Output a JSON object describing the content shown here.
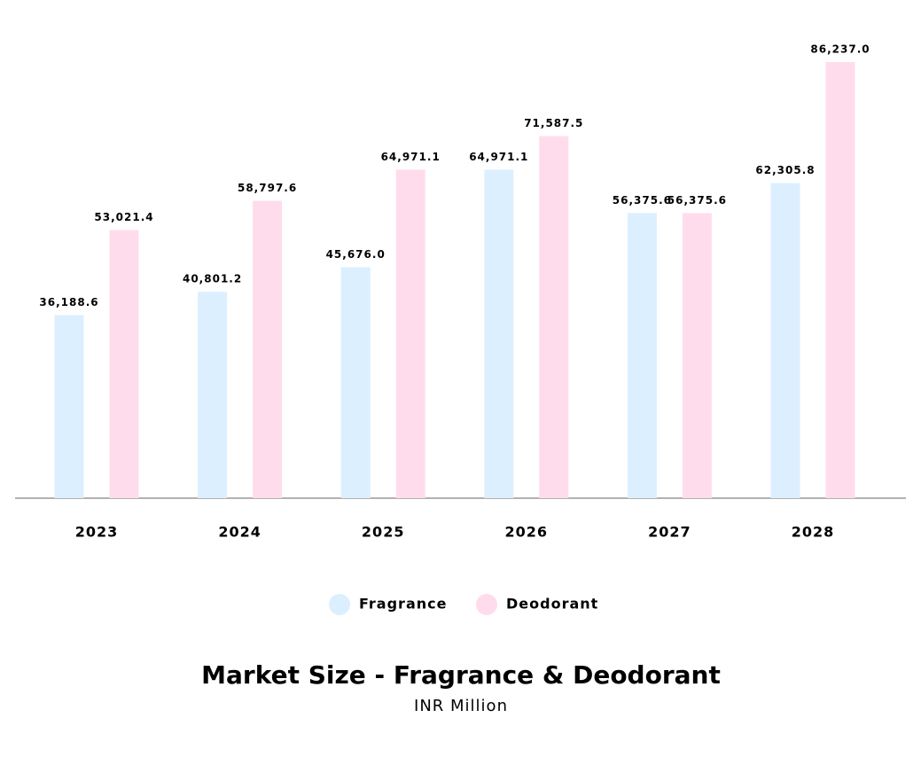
{
  "chart_data": {
    "type": "bar",
    "title": "Market Size - Fragrance & Deodorant",
    "subtitle": "INR Million",
    "categories": [
      "2023",
      "2024",
      "2025",
      "2026",
      "2027",
      "2028"
    ],
    "series": [
      {
        "name": "Fragrance",
        "color": "#dcefff",
        "values": [
          36188.6,
          40801.2,
          45676.0,
          64971.1,
          56375.6,
          62305.8
        ],
        "value_labels": [
          "36,188.6",
          "40,801.2",
          "45,676.0",
          "64,971.1",
          "56,375.6",
          "62,305.8"
        ]
      },
      {
        "name": "Deodorant",
        "color": "#ffdcec",
        "values": [
          53021.4,
          58797.6,
          64971.1,
          71587.5,
          56375.6,
          86237.0
        ],
        "value_labels": [
          "53,021.4",
          "58,797.6",
          "64,971.1",
          "71,587.5",
          "56,375.6",
          "86,237.0"
        ]
      }
    ]
  }
}
